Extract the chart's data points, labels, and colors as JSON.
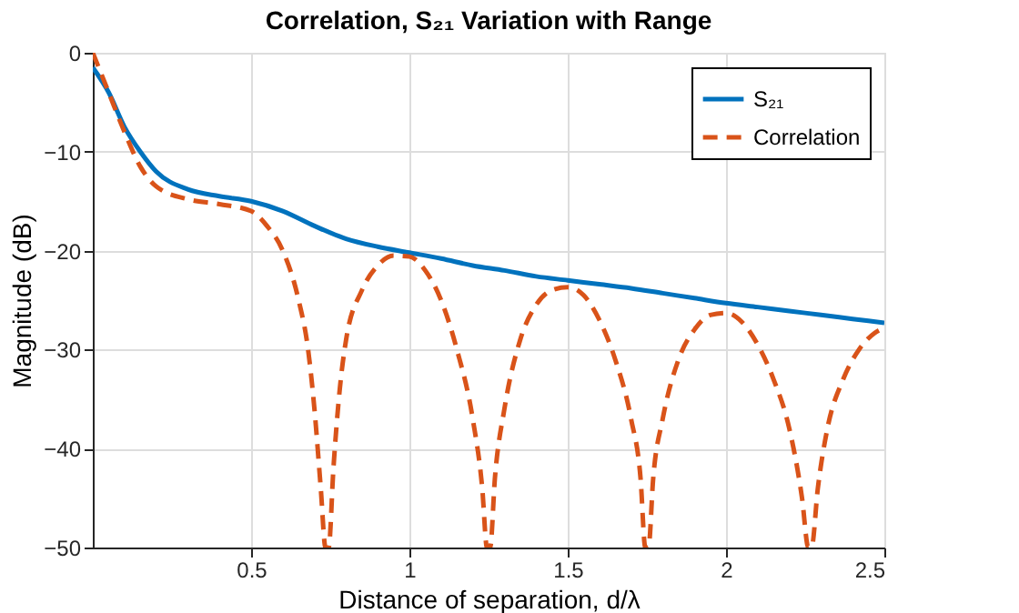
{
  "chart_data": {
    "type": "line",
    "title": "Correlation, S₂₁ Variation with Range",
    "xlabel": "Distance of separation, d/λ",
    "ylabel": "Magnitude (dB)",
    "xlim": [
      0,
      2.5
    ],
    "xticks": [
      0.5,
      1,
      1.5,
      2,
      2.5
    ],
    "ylim": [
      -50,
      0
    ],
    "yticks": [
      -50,
      -40,
      -30,
      -20,
      -10,
      0
    ],
    "grid": true,
    "legend": "top right",
    "series": [
      {
        "name": "S₂₁",
        "color": "#0072bd",
        "line_style": "solid",
        "x": [
          0,
          0.05,
          0.1,
          0.15,
          0.2,
          0.3,
          0.4,
          0.5,
          0.6,
          0.7,
          0.8,
          0.9,
          1.0,
          1.1,
          1.2,
          1.3,
          1.4,
          1.5,
          1.6,
          1.7,
          1.8,
          1.9,
          2.0,
          2.1,
          2.2,
          2.3,
          2.4,
          2.5
        ],
        "values": [
          -1.5,
          -4,
          -7.5,
          -10,
          -12,
          -13.8,
          -14.5,
          -15,
          -16,
          -17.5,
          -18.8,
          -19.6,
          -20.2,
          -20.8,
          -21.5,
          -22,
          -22.6,
          -23,
          -23.4,
          -23.8,
          -24.3,
          -24.8,
          -25.3,
          -25.7,
          -26.1,
          -26.5,
          -26.9,
          -27.3
        ]
      },
      {
        "name": "Correlation",
        "color": "#d95319",
        "line_style": "dashed",
        "x": [
          0,
          0.05,
          0.1,
          0.15,
          0.2,
          0.3,
          0.4,
          0.5,
          0.55,
          0.6,
          0.65,
          0.68,
          0.7,
          0.72,
          0.735,
          0.745,
          0.76,
          0.78,
          0.8,
          0.85,
          0.9,
          0.95,
          1.0,
          1.05,
          1.1,
          1.15,
          1.2,
          1.23,
          1.245,
          1.255,
          1.27,
          1.3,
          1.35,
          1.4,
          1.45,
          1.5,
          1.55,
          1.6,
          1.65,
          1.7,
          1.73,
          1.745,
          1.755,
          1.77,
          1.8,
          1.85,
          1.9,
          1.95,
          2.0,
          2.05,
          2.1,
          2.15,
          2.2,
          2.24,
          2.26,
          2.27,
          2.29,
          2.32,
          2.37,
          2.42,
          2.47,
          2.5
        ],
        "values": [
          0,
          -4,
          -8,
          -11.5,
          -13.5,
          -14.8,
          -15.3,
          -16,
          -17.5,
          -20,
          -25,
          -30,
          -36,
          -44,
          -50,
          -50,
          -42,
          -34,
          -29,
          -24,
          -21.5,
          -20.5,
          -20.6,
          -22,
          -25,
          -30,
          -37,
          -44,
          -50,
          -50,
          -43,
          -36,
          -29,
          -25.5,
          -24,
          -23.7,
          -24.5,
          -27,
          -31,
          -37,
          -43,
          -50,
          -50,
          -43,
          -37,
          -31,
          -28,
          -26.5,
          -26.3,
          -27.2,
          -29.5,
          -33,
          -38,
          -45,
          -50,
          -50,
          -44,
          -38,
          -33,
          -30,
          -28.3,
          -27.8
        ]
      }
    ]
  }
}
